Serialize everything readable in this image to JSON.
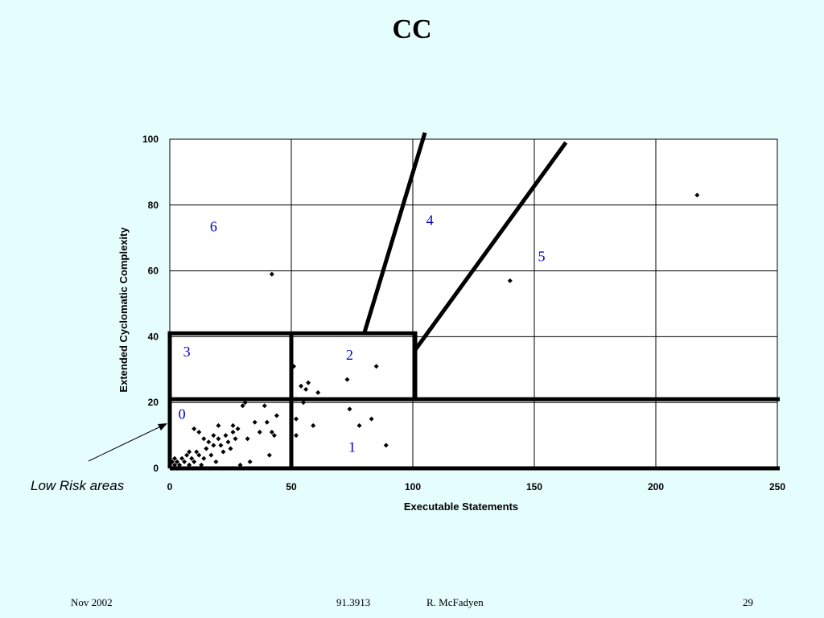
{
  "slide": {
    "title": "CC",
    "footer_left": "Nov 2002",
    "footer_course": "91.3913",
    "footer_author": "R. McFadyen",
    "footer_page": "29"
  },
  "chart_data": {
    "type": "scatter",
    "title": "",
    "xlabel": "Executable Statements",
    "ylabel": "Extended Cyclomatic Complexity",
    "xlim": [
      0,
      250
    ],
    "ylim": [
      0,
      100
    ],
    "xticks": [
      0,
      50,
      100,
      150,
      200,
      250
    ],
    "yticks": [
      0,
      20,
      40,
      60,
      80,
      100
    ],
    "grid": true,
    "colors": {
      "point": "#000000",
      "region_label": "#0000cc",
      "boundary": "#000000"
    },
    "points": [
      [
        1,
        0
      ],
      [
        2,
        1
      ],
      [
        3,
        0
      ],
      [
        1,
        2
      ],
      [
        2,
        3
      ],
      [
        3,
        2
      ],
      [
        4,
        1
      ],
      [
        5,
        3
      ],
      [
        6,
        2
      ],
      [
        7,
        4
      ],
      [
        8,
        1
      ],
      [
        9,
        3
      ],
      [
        10,
        2
      ],
      [
        11,
        5
      ],
      [
        12,
        4
      ],
      [
        13,
        1
      ],
      [
        14,
        3
      ],
      [
        15,
        6
      ],
      [
        16,
        8
      ],
      [
        17,
        4
      ],
      [
        18,
        10
      ],
      [
        19,
        2
      ],
      [
        20,
        9
      ],
      [
        21,
        7
      ],
      [
        22,
        5
      ],
      [
        23,
        10
      ],
      [
        24,
        8
      ],
      [
        25,
        6
      ],
      [
        26,
        13
      ],
      [
        27,
        9
      ],
      [
        28,
        12
      ],
      [
        10,
        12
      ],
      [
        12,
        11
      ],
      [
        20,
        13
      ],
      [
        18,
        7
      ],
      [
        26,
        11
      ],
      [
        8,
        5
      ],
      [
        14,
        9
      ],
      [
        29,
        1
      ],
      [
        30,
        19
      ],
      [
        31,
        20
      ],
      [
        32,
        9
      ],
      [
        33,
        2
      ],
      [
        35,
        14
      ],
      [
        37,
        11
      ],
      [
        39,
        19
      ],
      [
        40,
        14
      ],
      [
        41,
        4
      ],
      [
        42,
        11
      ],
      [
        43,
        10
      ],
      [
        44,
        16
      ],
      [
        51,
        31
      ],
      [
        52,
        21
      ],
      [
        52,
        15
      ],
      [
        52,
        10
      ],
      [
        54,
        25
      ],
      [
        55,
        20
      ],
      [
        56,
        24
      ],
      [
        57,
        26
      ],
      [
        59,
        13
      ],
      [
        61,
        23
      ],
      [
        73,
        27
      ],
      [
        74,
        18
      ],
      [
        78,
        13
      ],
      [
        83,
        15
      ],
      [
        85,
        31
      ],
      [
        89,
        7
      ],
      [
        42,
        59
      ],
      [
        140,
        57
      ],
      [
        217,
        83
      ]
    ],
    "region_labels": [
      {
        "label": "0",
        "x": 5,
        "y": 15
      },
      {
        "label": "1",
        "x": 75,
        "y": 5
      },
      {
        "label": "2",
        "x": 74,
        "y": 33
      },
      {
        "label": "3",
        "x": 7,
        "y": 34
      },
      {
        "label": "4",
        "x": 107,
        "y": 74
      },
      {
        "label": "5",
        "x": 153,
        "y": 63
      },
      {
        "label": "6",
        "x": 18,
        "y": 72
      }
    ],
    "boundaries": [
      [
        [
          0,
          0
        ],
        [
          0,
          41
        ],
        [
          101,
          41
        ],
        [
          101,
          21
        ]
      ],
      [
        [
          0,
          21
        ],
        [
          251,
          21
        ]
      ],
      [
        [
          50,
          0
        ],
        [
          50,
          41
        ]
      ],
      [
        [
          0,
          0
        ],
        [
          251,
          0
        ]
      ],
      [
        [
          80,
          41
        ],
        [
          105,
          102
        ]
      ],
      [
        [
          101,
          36
        ],
        [
          163,
          99
        ]
      ]
    ],
    "annotation": {
      "text": "Low Risk areas",
      "arrow_to": [
        0,
        13
      ]
    }
  }
}
